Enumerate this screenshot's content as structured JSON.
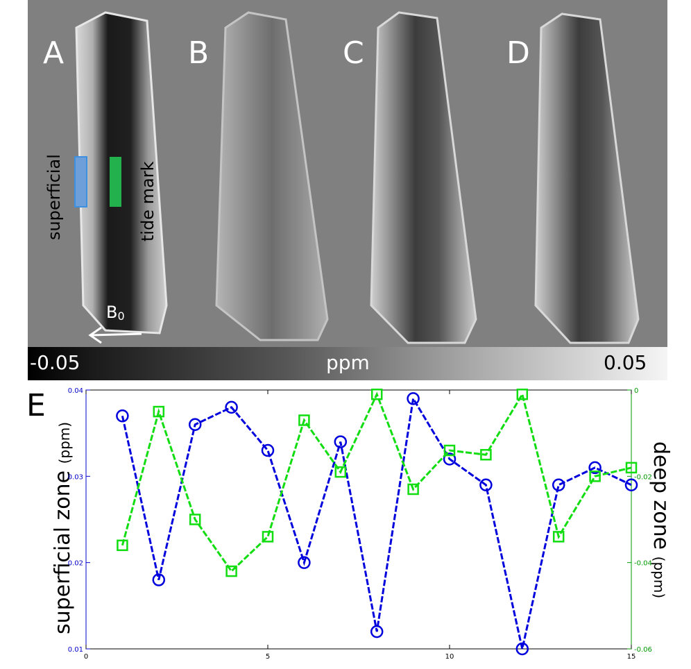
{
  "panels": {
    "labels": [
      "A",
      "B",
      "C",
      "D"
    ],
    "superficial_label": "superficial",
    "tide_mark_label": "tide mark",
    "b0_main": "B",
    "b0_sub": "0",
    "roi_colors": {
      "superficial": "#5b9bd5",
      "deep": "#22b14c"
    }
  },
  "colorbar": {
    "min_label": "-0.05",
    "unit_label": "ppm",
    "max_label": "0.05"
  },
  "panel_e": {
    "letter": "E",
    "left_axis_label": "superficial zone",
    "left_axis_unit": "(ppm)",
    "right_axis_label": "deep zone",
    "right_axis_unit": "(ppm)"
  },
  "chart_data": {
    "type": "line",
    "x": [
      1,
      2,
      3,
      4,
      5,
      6,
      7,
      8,
      9,
      10,
      11,
      12,
      13,
      14,
      15
    ],
    "xlim": [
      0,
      15
    ],
    "xticks": [
      "0",
      "5",
      "10",
      "15"
    ],
    "series": [
      {
        "axis": "left",
        "color": "#0000cc",
        "marker": "circle",
        "values": [
          0.037,
          0.018,
          0.036,
          0.038,
          0.033,
          0.02,
          0.034,
          0.012,
          0.039,
          0.032,
          0.029,
          0.01,
          0.029,
          0.031,
          0.029
        ]
      },
      {
        "axis": "right",
        "color": "#00cc00",
        "marker": "square",
        "values": [
          -0.036,
          -0.005,
          -0.03,
          -0.042,
          -0.034,
          -0.007,
          -0.019,
          -0.001,
          -0.023,
          -0.014,
          -0.015,
          -0.001,
          -0.034,
          -0.02,
          -0.018
        ]
      }
    ],
    "left_ylim": [
      0.01,
      0.04
    ],
    "left_yticks": [
      "0.01",
      "0.02",
      "0.03",
      "0.04"
    ],
    "right_ylim": [
      -0.06,
      0
    ],
    "right_yticks": [
      "-0.06",
      "-0.04",
      "-0.02",
      "0"
    ]
  }
}
